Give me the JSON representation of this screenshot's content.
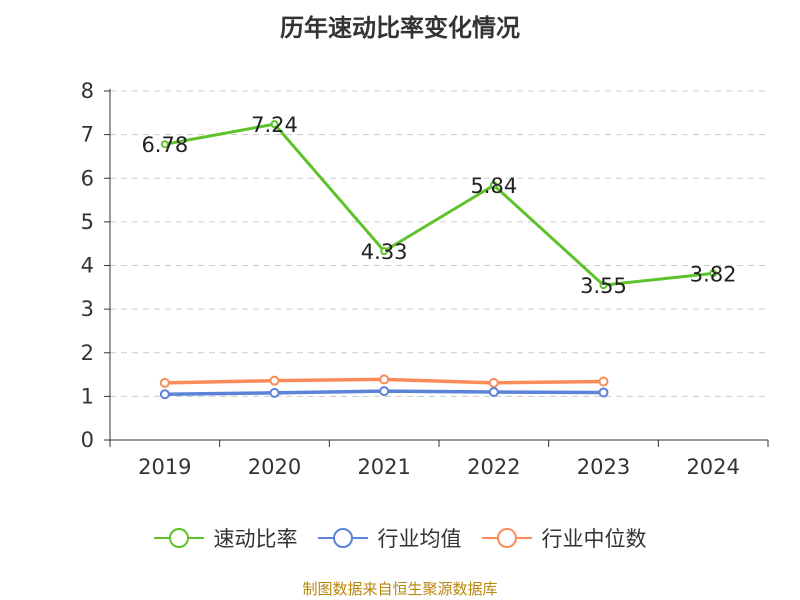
{
  "title": "历年速动比率变化情况",
  "footer": "制图数据来自恒生聚源数据库",
  "chart_data": {
    "type": "line",
    "title": "历年速动比率变化情况",
    "categories": [
      "2019",
      "2020",
      "2021",
      "2022",
      "2023",
      "2024"
    ],
    "ylim": [
      0,
      8
    ],
    "yticks": [
      "0",
      "1",
      "2",
      "3",
      "4",
      "5",
      "6",
      "7",
      "8"
    ],
    "grid": true,
    "legend_position": "bottom",
    "series": [
      {
        "name": "速动比率",
        "color": "#5ec22a",
        "values": [
          6.78,
          7.24,
          4.33,
          5.84,
          3.55,
          3.82
        ],
        "labels": [
          "6.78",
          "7.24",
          "4.33",
          "5.84",
          "3.55",
          "3.82"
        ]
      },
      {
        "name": "行业均值",
        "color": "#5b83d8",
        "values": [
          1.05,
          1.08,
          1.12,
          1.1,
          1.09,
          null
        ]
      },
      {
        "name": "行业中位数",
        "color": "#fb8c5a",
        "values": [
          1.31,
          1.36,
          1.39,
          1.31,
          1.34,
          null
        ]
      }
    ]
  }
}
